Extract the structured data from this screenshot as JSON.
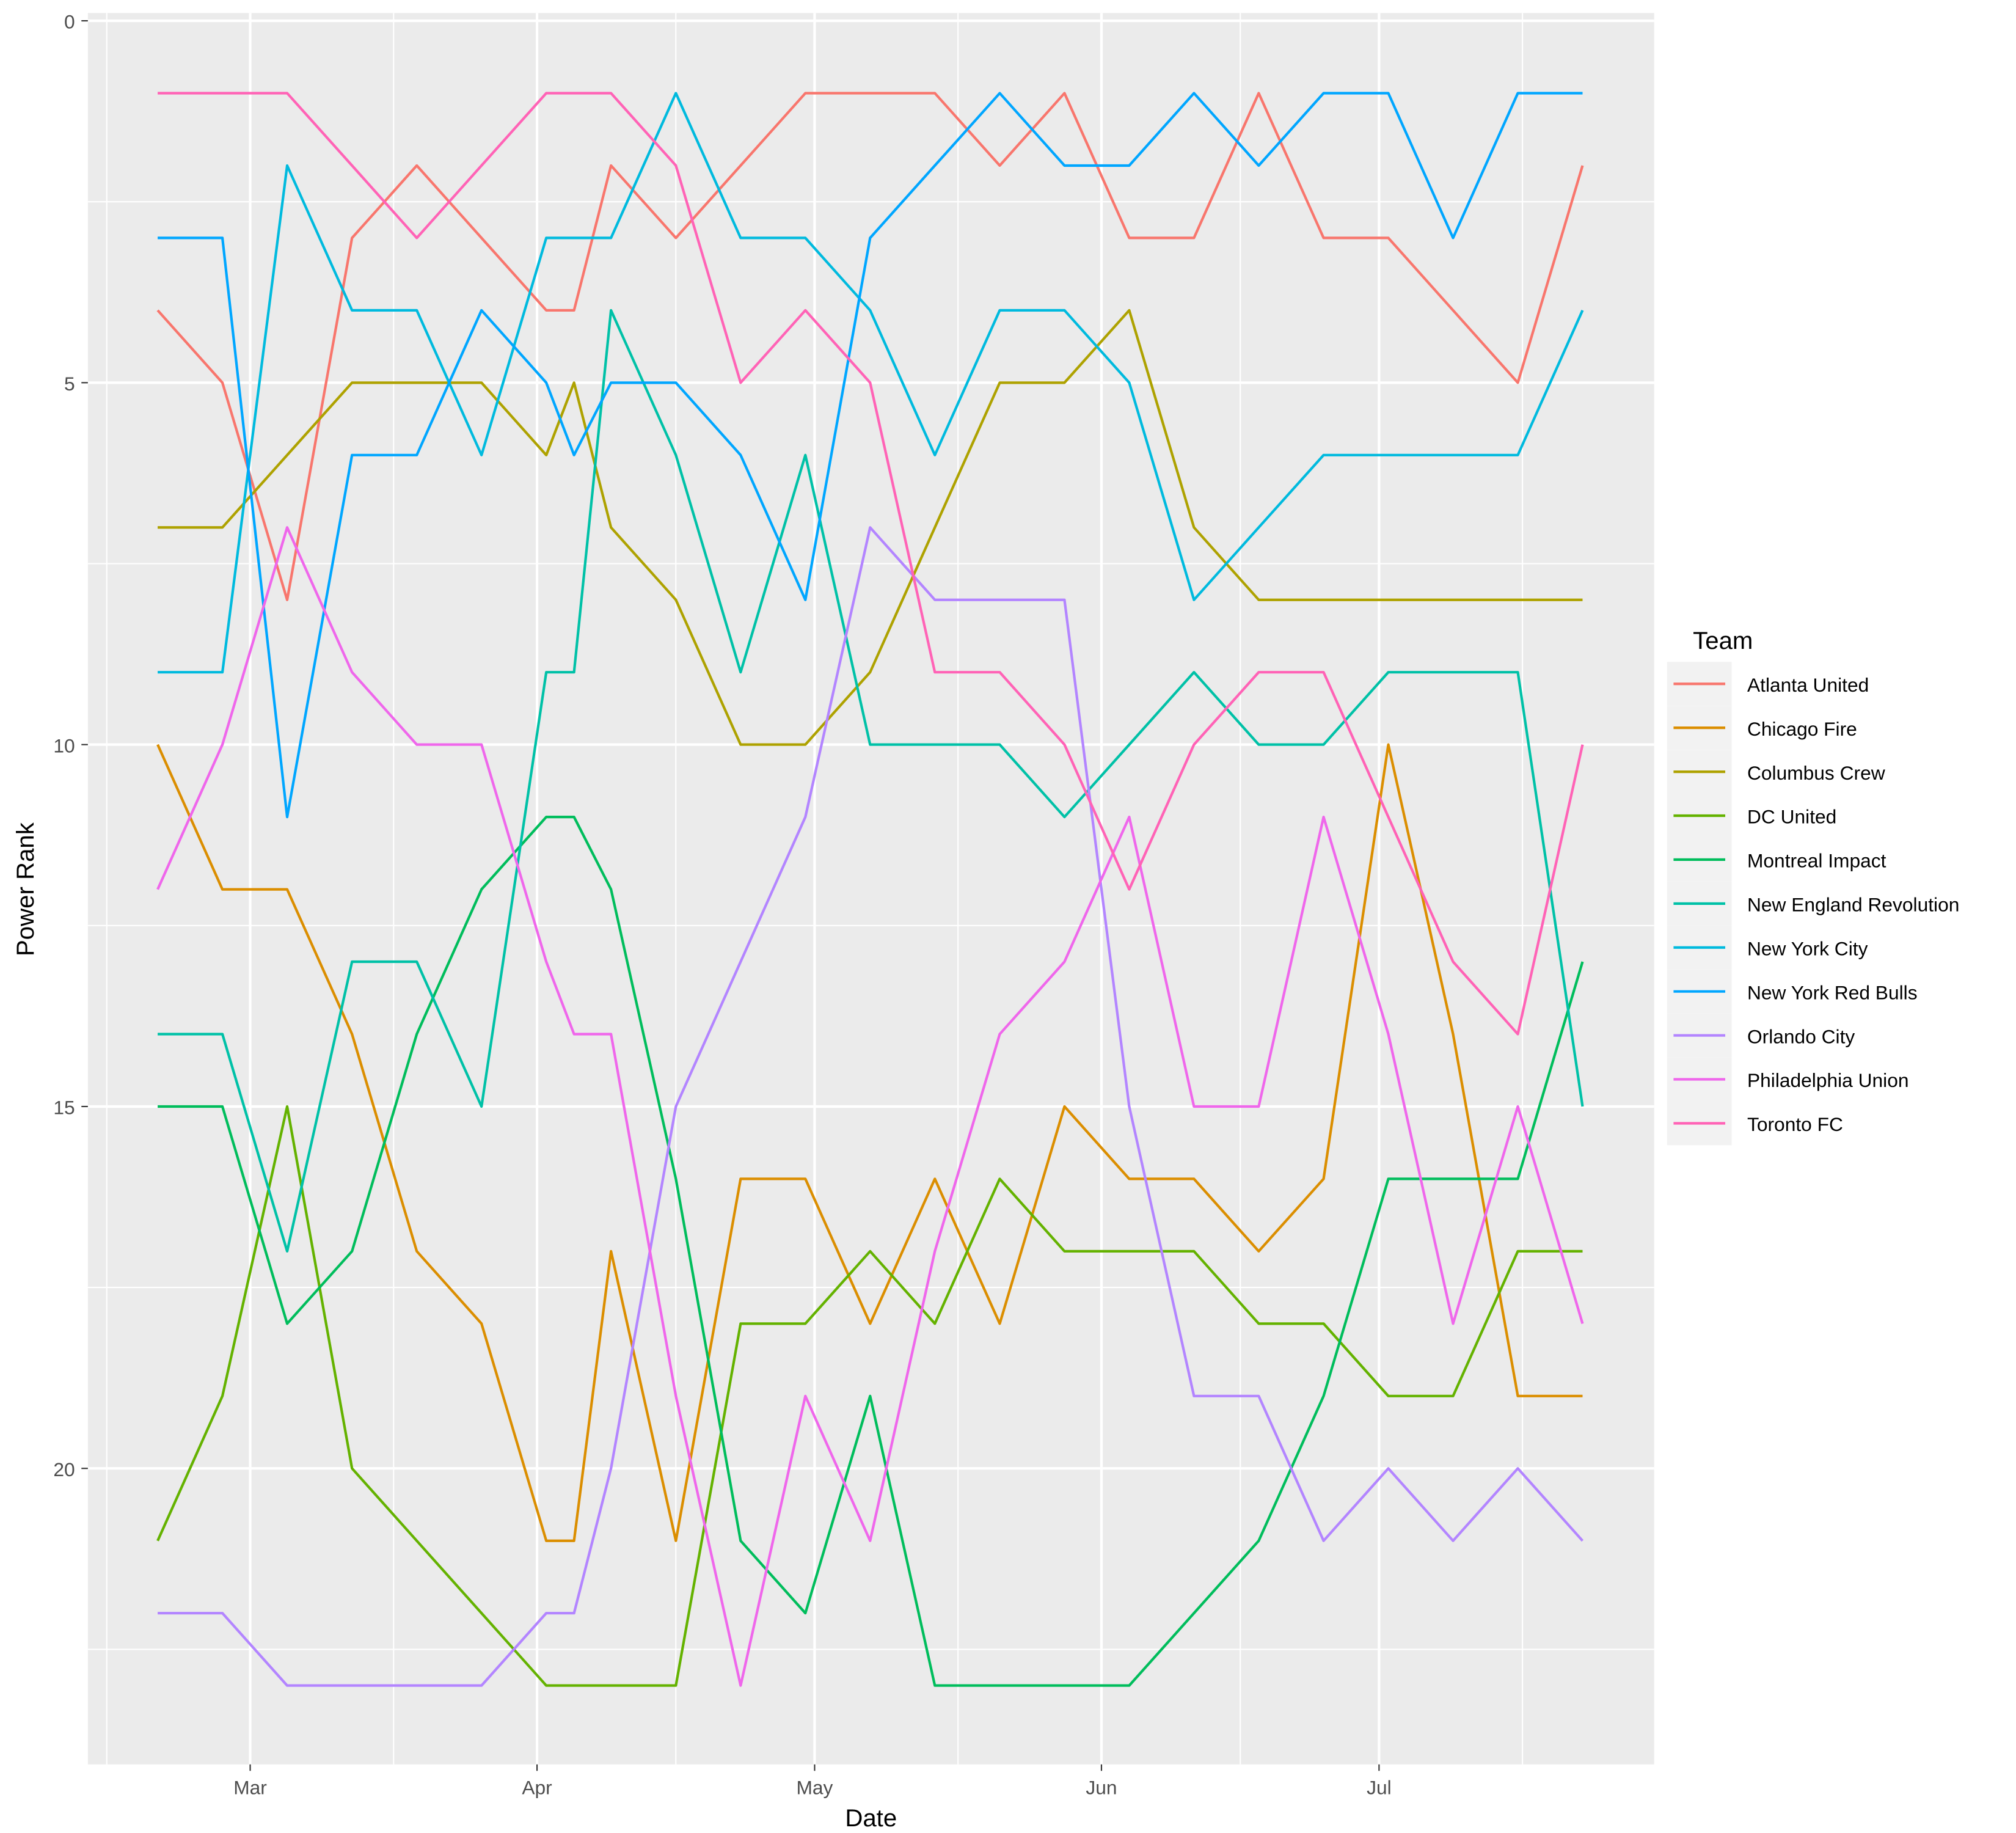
{
  "chart_data": {
    "type": "line",
    "title": "",
    "xlabel": "Date",
    "ylabel": "Power Rank",
    "y_reversed": true,
    "ylim": [
      0,
      24
    ],
    "yticks": [
      0,
      5,
      10,
      15,
      20
    ],
    "ytick_labels": [
      "0",
      "5",
      "10",
      "15",
      "20"
    ],
    "xtick_labels": [
      "Mar",
      "Apr",
      "May",
      "Jun",
      "Jul"
    ],
    "xtick_days": [
      10,
      41,
      71,
      102,
      132
    ],
    "grid": true,
    "legend_title": "Team",
    "legend_position": "right",
    "x": [
      "Feb 19",
      "Feb 26",
      "Mar 5",
      "Mar 12",
      "Mar 19",
      "Mar 26",
      "Apr 2",
      "Apr 5",
      "Apr 9",
      "Apr 16",
      "Apr 23",
      "Apr 30",
      "May 7",
      "May 14",
      "May 21",
      "May 28",
      "Jun 4",
      "Jun 11",
      "Jun 18",
      "Jun 25",
      "Jul 2",
      "Jul 9",
      "Jul 16",
      "Jul 23"
    ],
    "x_days": [
      0,
      7,
      14,
      21,
      28,
      35,
      42,
      45,
      49,
      56,
      63,
      70,
      77,
      84,
      91,
      98,
      105,
      112,
      119,
      126,
      133,
      140,
      147,
      154
    ],
    "series": [
      {
        "name": "Atlanta United",
        "color": "#F8766D",
        "values": [
          4,
          5,
          8,
          3,
          2,
          3,
          4,
          4,
          2,
          3,
          2,
          1,
          1,
          1,
          2,
          1,
          3,
          3,
          1,
          3,
          3,
          4,
          5,
          2
        ]
      },
      {
        "name": "Chicago Fire",
        "color": "#DB8E00",
        "values": [
          10,
          12,
          12,
          14,
          17,
          18,
          21,
          21,
          17,
          21,
          16,
          16,
          18,
          16,
          18,
          15,
          16,
          16,
          17,
          16,
          10,
          14,
          19,
          19
        ]
      },
      {
        "name": "Columbus Crew",
        "color": "#AEA200",
        "values": [
          7,
          7,
          6,
          5,
          5,
          5,
          6,
          5,
          7,
          8,
          10,
          10,
          9,
          7,
          5,
          5,
          4,
          7,
          8,
          8,
          8,
          8,
          8,
          8
        ]
      },
      {
        "name": "DC United",
        "color": "#64B200",
        "values": [
          21,
          19,
          15,
          20,
          21,
          22,
          23,
          23,
          23,
          23,
          18,
          18,
          17,
          18,
          16,
          17,
          17,
          17,
          18,
          18,
          19,
          19,
          17,
          17
        ]
      },
      {
        "name": "Montreal Impact",
        "color": "#00BD5C",
        "values": [
          15,
          15,
          18,
          17,
          14,
          12,
          11,
          11,
          12,
          16,
          21,
          22,
          19,
          23,
          23,
          23,
          23,
          22,
          21,
          19,
          16,
          16,
          16,
          13
        ]
      },
      {
        "name": "New England Revolution",
        "color": "#00C1A7",
        "values": [
          14,
          14,
          17,
          13,
          13,
          15,
          9,
          9,
          4,
          6,
          9,
          6,
          10,
          10,
          10,
          11,
          10,
          9,
          10,
          10,
          9,
          9,
          9,
          15
        ]
      },
      {
        "name": "New York City",
        "color": "#00BADE",
        "values": [
          9,
          9,
          2,
          4,
          4,
          6,
          3,
          3,
          3,
          1,
          3,
          3,
          4,
          6,
          4,
          4,
          5,
          8,
          7,
          6,
          6,
          6,
          6,
          4
        ]
      },
      {
        "name": "New York Red Bulls",
        "color": "#00A6FF",
        "values": [
          3,
          3,
          11,
          6,
          6,
          4,
          5,
          6,
          5,
          5,
          6,
          8,
          3,
          2,
          1,
          2,
          2,
          1,
          2,
          1,
          1,
          3,
          1,
          1
        ]
      },
      {
        "name": "Orlando City",
        "color": "#B385FF",
        "values": [
          22,
          22,
          23,
          23,
          23,
          23,
          22,
          22,
          20,
          15,
          13,
          11,
          7,
          8,
          8,
          8,
          15,
          19,
          19,
          21,
          20,
          21,
          20,
          21
        ]
      },
      {
        "name": "Philadelphia Union",
        "color": "#EF67EB",
        "values": [
          12,
          10,
          7,
          9,
          10,
          10,
          13,
          14,
          14,
          19,
          23,
          19,
          21,
          17,
          14,
          13,
          11,
          15,
          15,
          11,
          14,
          18,
          15,
          18
        ]
      },
      {
        "name": "Toronto FC",
        "color": "#FF63B6",
        "values": [
          1,
          1,
          1,
          2,
          3,
          2,
          1,
          1,
          1,
          2,
          5,
          4,
          5,
          9,
          9,
          10,
          12,
          10,
          9,
          9,
          11,
          13,
          14,
          10
        ]
      }
    ]
  }
}
